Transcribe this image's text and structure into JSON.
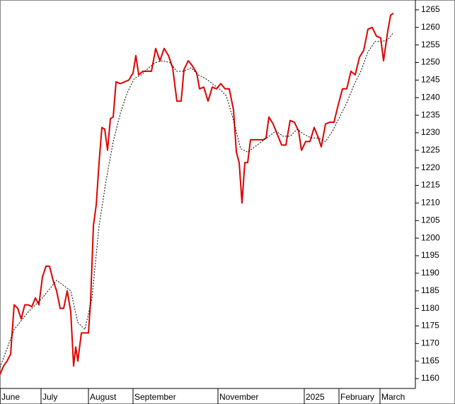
{
  "chart_data": {
    "type": "line",
    "xlim": [
      0,
      587
    ],
    "ylim": [
      1157.2,
      1267.8
    ],
    "xticks": [
      {
        "value": 0,
        "label": "June"
      },
      {
        "value": 58,
        "label": "July"
      },
      {
        "value": 125,
        "label": "August"
      },
      {
        "value": 188,
        "label": "September"
      },
      {
        "value": 308,
        "label": "November"
      },
      {
        "value": 430,
        "label": "2025"
      },
      {
        "value": 479,
        "label": "February"
      },
      {
        "value": 537,
        "label": "March"
      }
    ],
    "yticks": [
      1160,
      1165,
      1170,
      1175,
      1180,
      1185,
      1190,
      1195,
      1200,
      1205,
      1210,
      1215,
      1220,
      1225,
      1230,
      1235,
      1240,
      1245,
      1250,
      1255,
      1260,
      1265
    ],
    "series": [
      {
        "color": "#dd0000",
        "dash": false,
        "x": [
          0,
          5,
          10,
          15,
          20,
          25,
          30,
          35,
          40,
          45,
          50,
          55,
          60,
          65,
          70,
          75,
          80,
          85,
          90,
          95,
          100,
          104,
          107,
          110,
          115,
          120,
          125,
          128,
          132,
          136,
          140,
          144,
          148,
          152,
          156,
          160,
          164,
          170,
          176,
          182,
          188,
          192,
          196,
          202,
          208,
          214,
          220,
          226,
          232,
          238,
          244,
          250,
          256,
          260,
          266,
          272,
          278,
          282,
          288,
          294,
          300,
          306,
          312,
          318,
          324,
          330,
          334,
          338,
          342,
          346,
          350,
          354,
          360,
          366,
          372,
          376,
          380,
          386,
          392,
          398,
          404,
          410,
          416,
          422,
          426,
          432,
          438,
          444,
          450,
          454,
          460,
          466,
          472,
          478,
          484,
          490,
          496,
          502,
          508,
          514,
          520,
          526,
          532,
          538,
          542,
          548,
          552,
          556
        ],
        "values": [
          1161.2,
          1163.6,
          1165,
          1167,
          1181,
          1180,
          1177,
          1181,
          1181,
          1180.5,
          1183,
          1181,
          1189,
          1192,
          1192,
          1188,
          1185,
          1180,
          1180,
          1185,
          1179,
          1163.6,
          1169,
          1165,
          1173,
          1173,
          1173,
          1182,
          1203.5,
          1209.5,
          1221.5,
          1231.5,
          1231,
          1225,
          1234,
          1234.5,
          1244.5,
          1244,
          1244.5,
          1245,
          1247,
          1252,
          1246.5,
          1247.5,
          1247.5,
          1247.5,
          1254,
          1250.5,
          1254,
          1252,
          1248.5,
          1239,
          1239,
          1248,
          1250.5,
          1249,
          1247,
          1242.5,
          1243,
          1239,
          1243,
          1242.5,
          1244,
          1242.5,
          1242.5,
          1236.5,
          1224.5,
          1221.5,
          1210,
          1221.5,
          1221.5,
          1228,
          1228,
          1228,
          1228,
          1228.5,
          1234.5,
          1232.5,
          1229.5,
          1226.5,
          1226.5,
          1233.5,
          1233,
          1230.5,
          1225,
          1227.5,
          1227.5,
          1231.5,
          1228.5,
          1226,
          1232.5,
          1233,
          1233,
          1238,
          1242.5,
          1242.5,
          1247.5,
          1246.5,
          1251.5,
          1253.5,
          1259.5,
          1260,
          1257.5,
          1257,
          1250.5,
          1259,
          1263.5,
          1264
        ]
      },
      {
        "color": "#000000",
        "dash": true,
        "x": [
          0,
          20,
          40,
          60,
          80,
          100,
          110,
          120,
          130,
          140,
          150,
          160,
          170,
          180,
          190,
          200,
          210,
          220,
          230,
          240,
          250,
          260,
          270,
          280,
          290,
          300,
          310,
          320,
          330,
          340,
          350,
          360,
          370,
          380,
          390,
          400,
          410,
          420,
          430,
          440,
          450,
          460,
          470,
          480,
          490,
          500,
          510,
          520,
          530,
          540,
          548,
          556
        ],
        "values": [
          1163.2,
          1174,
          1179,
          1183,
          1188,
          1185,
          1176,
          1174,
          1183,
          1203.5,
          1216.5,
          1227.5,
          1235.5,
          1241.5,
          1245.5,
          1246.5,
          1248.5,
          1250,
          1250.5,
          1250,
          1247.5,
          1247.5,
          1248.5,
          1246.5,
          1245.5,
          1244,
          1242.5,
          1240.5,
          1233.5,
          1225.5,
          1224.5,
          1226,
          1227.5,
          1229,
          1230.5,
          1229,
          1229,
          1231,
          1229.5,
          1228.5,
          1228.5,
          1227.5,
          1230.5,
          1234.5,
          1238.5,
          1243.5,
          1247.5,
          1253,
          1256,
          1256,
          1256.5,
          1258.5
        ]
      }
    ]
  }
}
